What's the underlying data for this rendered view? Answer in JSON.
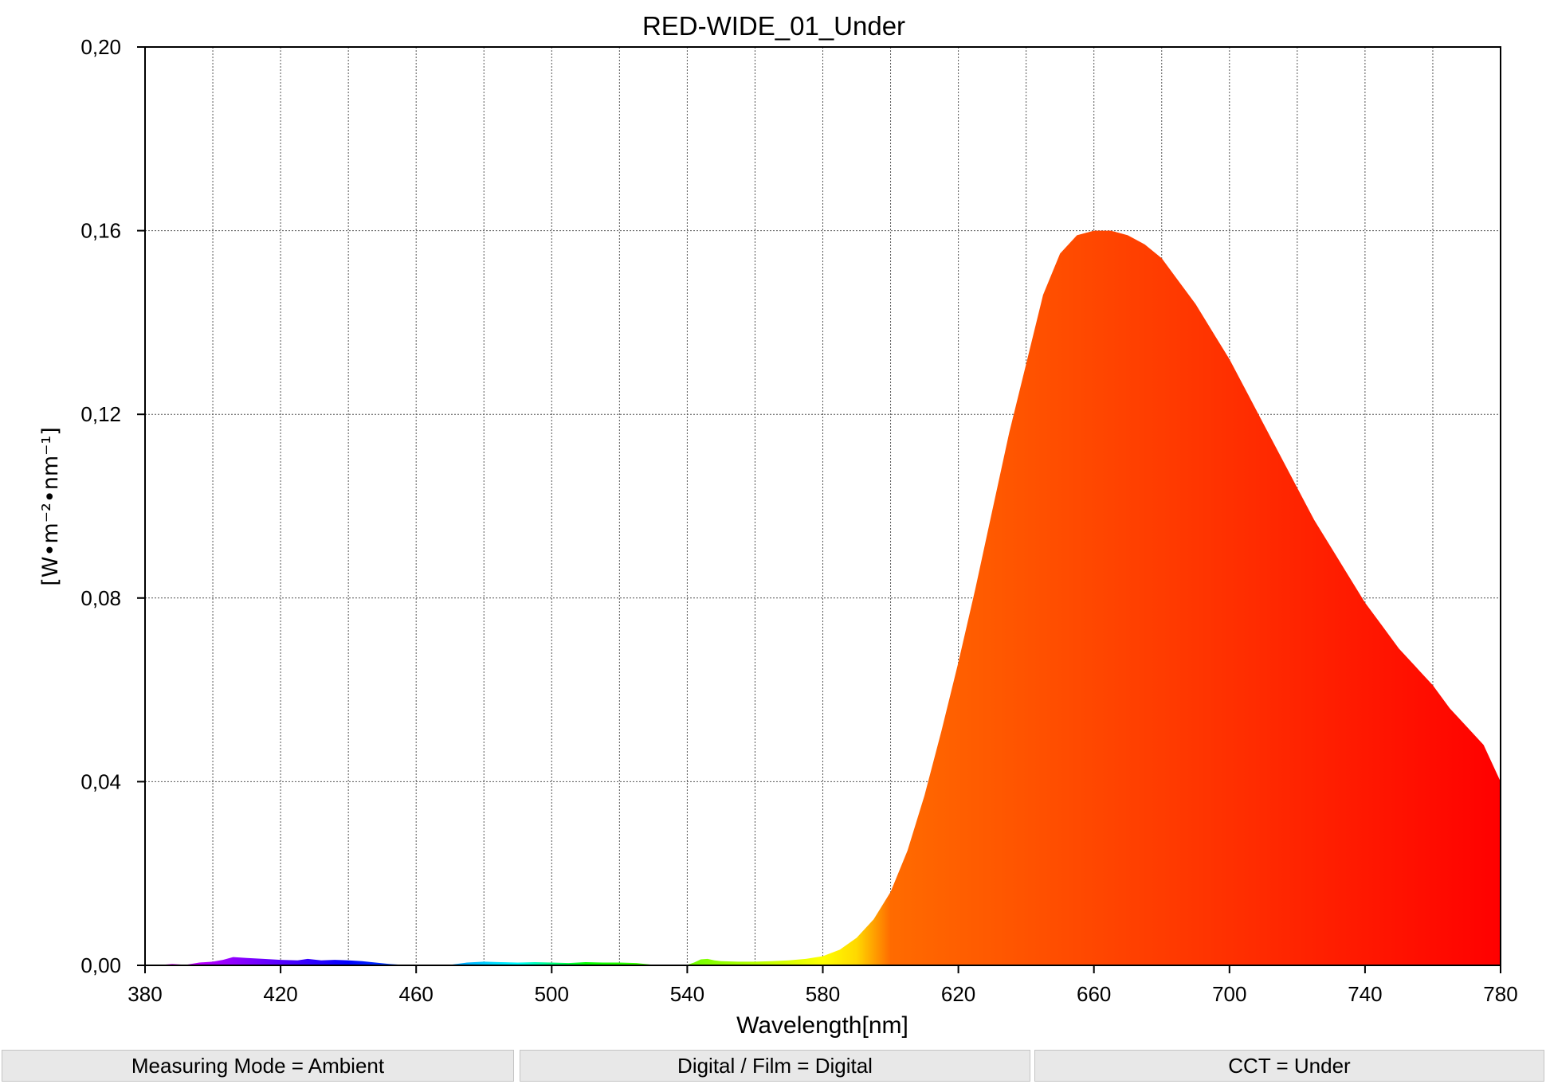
{
  "chart_data": {
    "type": "area",
    "title": "RED-WIDE_01_Under",
    "xlabel": "Wavelength[nm]",
    "ylabel": "[W•m⁻²•nm⁻¹]",
    "xlim": [
      380,
      780
    ],
    "ylim": [
      0,
      0.2
    ],
    "xticks": [
      "380",
      "420",
      "460",
      "500",
      "540",
      "580",
      "620",
      "660",
      "700",
      "740",
      "780"
    ],
    "yticks": [
      "0,00",
      "0,04",
      "0,08",
      "0,12",
      "0,16",
      "0,20"
    ],
    "grid": true,
    "fill": "spectral color gradient by wavelength",
    "series": [
      {
        "x": [
          380,
          385,
          388,
          392,
          396,
          400,
          403,
          406,
          410,
          415,
          420,
          425,
          428,
          432,
          436,
          440,
          444,
          448,
          452,
          456,
          460,
          465,
          470,
          475,
          480,
          485,
          490,
          495,
          500,
          505,
          510,
          515,
          520,
          525,
          530,
          535,
          540,
          542,
          544,
          546,
          548,
          550,
          555,
          560,
          565,
          570,
          575,
          580,
          585,
          590,
          595,
          600,
          605,
          610,
          615,
          620,
          625,
          630,
          635,
          640,
          645,
          650,
          655,
          660,
          665,
          670,
          675,
          680,
          685,
          690,
          695,
          700,
          705,
          710,
          715,
          720,
          725,
          730,
          735,
          740,
          745,
          750,
          755,
          760,
          765,
          770,
          775,
          780
        ],
        "y": [
          0.0,
          0.0001,
          0.0003,
          0.0001,
          0.0006,
          0.0008,
          0.0012,
          0.0018,
          0.0016,
          0.0014,
          0.0012,
          0.0011,
          0.0014,
          0.0011,
          0.0012,
          0.0011,
          0.0009,
          0.0006,
          0.0003,
          0.0001,
          0.0,
          0.0,
          0.0001,
          0.0006,
          0.0008,
          0.0007,
          0.0006,
          0.0007,
          0.0006,
          0.0005,
          0.0007,
          0.0006,
          0.0006,
          0.0005,
          0.0001,
          0.0,
          0.0001,
          0.0006,
          0.0013,
          0.0014,
          0.0011,
          0.0009,
          0.0008,
          0.0008,
          0.0009,
          0.0011,
          0.0014,
          0.002,
          0.0034,
          0.006,
          0.01,
          0.016,
          0.025,
          0.037,
          0.051,
          0.066,
          0.082,
          0.099,
          0.116,
          0.131,
          0.146,
          0.155,
          0.159,
          0.16,
          0.16,
          0.159,
          0.157,
          0.154,
          0.149,
          0.144,
          0.138,
          0.132,
          0.125,
          0.118,
          0.111,
          0.104,
          0.097,
          0.091,
          0.085,
          0.079,
          0.074,
          0.069,
          0.065,
          0.061,
          0.056,
          0.052,
          0.048,
          0.04
        ]
      }
    ]
  },
  "status": {
    "measuring_mode": "Measuring Mode = Ambient",
    "digital_film": "Digital / Film = Digital",
    "cct": "CCT = Under"
  }
}
